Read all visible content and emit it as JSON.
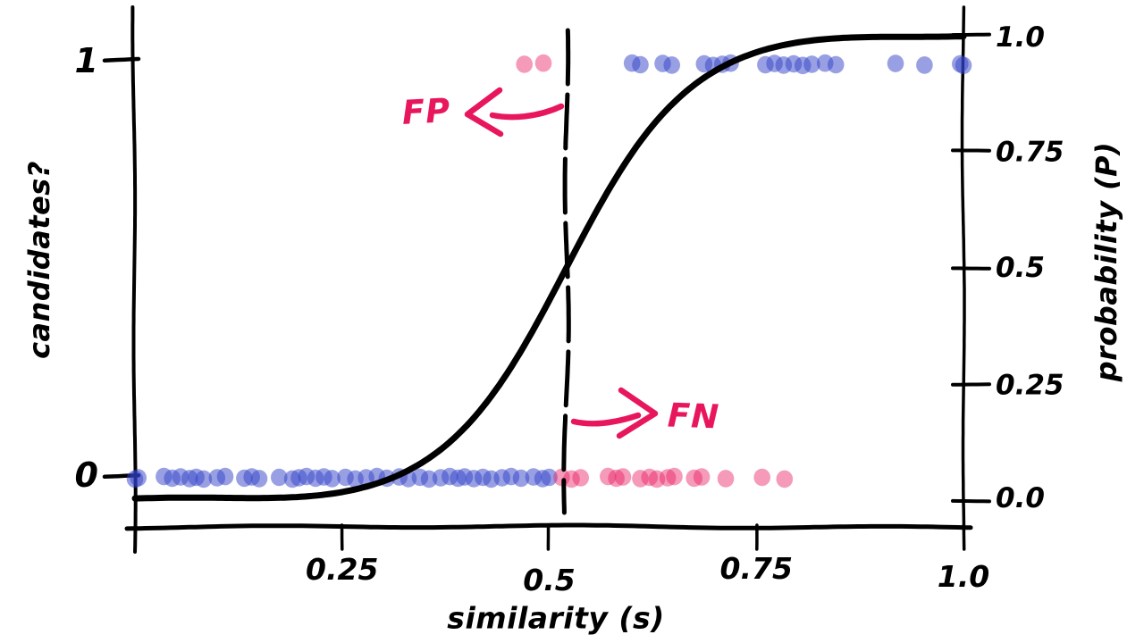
{
  "figure": {
    "background": "#ffffff",
    "ink": "#000000",
    "accent_crimson": "#e8175d",
    "blue_dot_color": "#3242c8",
    "pink_dot_color": "#e91e63"
  },
  "chart_data": {
    "type": "scatter",
    "style": "hand-drawn-xkcd",
    "xlabel": "similarity (s)",
    "ylabel_left": "candidates?",
    "ylabel_right": "probability (P)",
    "xlim": [
      0,
      1.0
    ],
    "x_ticks": [
      0.25,
      0.5,
      0.75,
      1.0
    ],
    "x_tick_labels": [
      "0.25",
      "0.5",
      "0.75",
      "1.0"
    ],
    "left_y_ticks": [
      1,
      0
    ],
    "left_y_tick_labels": [
      "1",
      "0"
    ],
    "right_y_ticks": [
      1.0,
      0.75,
      0.5,
      0.25,
      0.0
    ],
    "right_y_tick_labels": [
      "1.0",
      "0.75",
      "0.5",
      "0.25",
      "0.0"
    ],
    "right_ylim": [
      0.0,
      1.0
    ],
    "grid": false,
    "legend": null,
    "threshold_line": {
      "s": 0.52,
      "style": "dashed",
      "color": "#000000"
    },
    "curve": {
      "kind": "logistic",
      "center": 0.52,
      "scale": 0.072,
      "color": "#000000"
    },
    "series": [
      {
        "name": "candidates-1-blue",
        "row_value": 1,
        "color": "#3242c8",
        "opacity": 0.5,
        "x": [
          0.6,
          0.61,
          0.637,
          0.648,
          0.687,
          0.698,
          0.709,
          0.719,
          0.761,
          0.772,
          0.783,
          0.795,
          0.806,
          0.817,
          0.833,
          0.846,
          0.918,
          0.953,
          0.996,
          1.0
        ]
      },
      {
        "name": "candidates-1-pink",
        "row_value": 1,
        "color": "#e91e63",
        "opacity": 0.45,
        "x": [
          0.47,
          0.493
        ]
      },
      {
        "name": "candidates-0-blue",
        "row_value": 0,
        "color": "#3242c8",
        "opacity": 0.5,
        "x": [
          0.0,
          0.004,
          0.035,
          0.045,
          0.055,
          0.066,
          0.074,
          0.083,
          0.099,
          0.109,
          0.132,
          0.141,
          0.15,
          0.174,
          0.19,
          0.198,
          0.207,
          0.218,
          0.228,
          0.238,
          0.254,
          0.266,
          0.279,
          0.292,
          0.304,
          0.319,
          0.33,
          0.344,
          0.355,
          0.369,
          0.38,
          0.39,
          0.398,
          0.409,
          0.42,
          0.43,
          0.443,
          0.454,
          0.466,
          0.481,
          0.492,
          0.5
        ]
      },
      {
        "name": "candidates-0-pink",
        "row_value": 0,
        "color": "#e91e63",
        "opacity": 0.45,
        "x": [
          0.515,
          0.527,
          0.538,
          0.571,
          0.581,
          0.589,
          0.61,
          0.621,
          0.63,
          0.643,
          0.651,
          0.675,
          0.684,
          0.713,
          0.757,
          0.784
        ]
      }
    ],
    "annotations": [
      {
        "label": "FP",
        "color": "#e8175d",
        "arrow_direction": "left",
        "near_s": 0.52,
        "near_P": 0.84
      },
      {
        "label": "FN",
        "color": "#e8175d",
        "arrow_direction": "right",
        "near_s": 0.52,
        "near_P": 0.18
      }
    ]
  }
}
